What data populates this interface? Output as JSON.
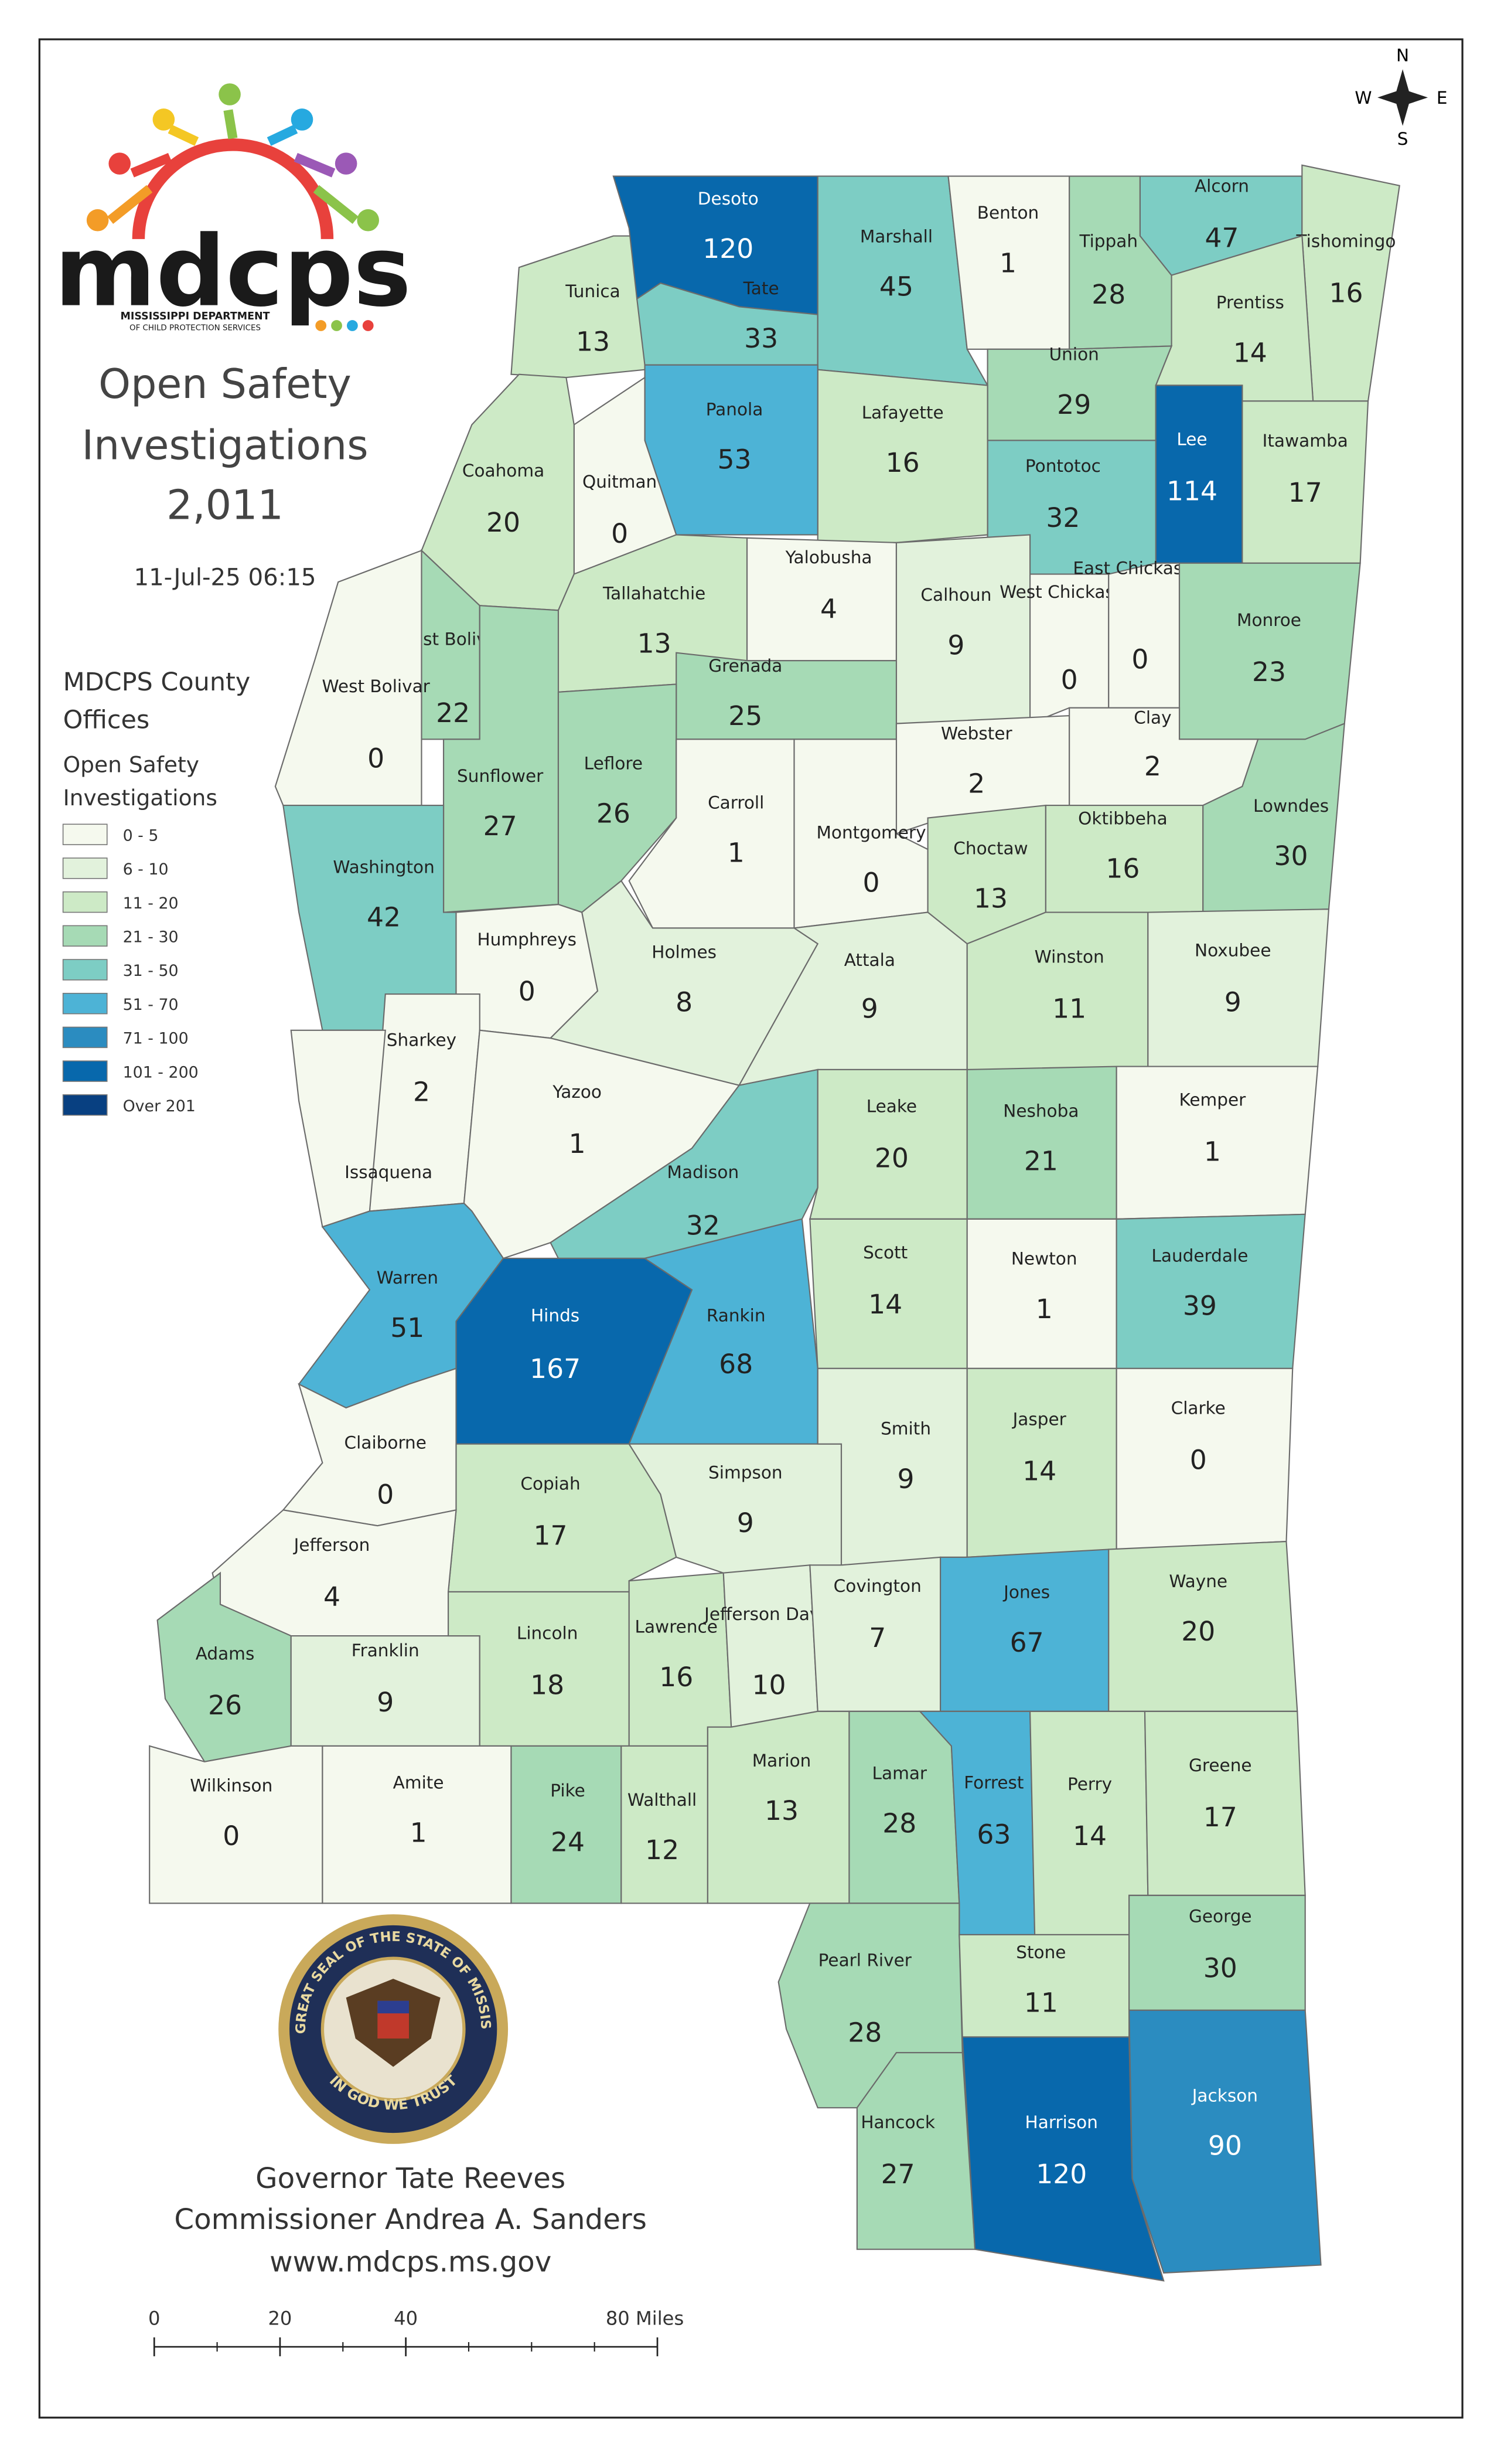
{
  "logo": {
    "wordmark": "mdcps",
    "line1": "MISSISSIPPI DEPARTMENT",
    "line2": "OF CHILD PROTECTION SERVICES"
  },
  "title_lines": [
    "Open Safety",
    "Investigations",
    "2,011"
  ],
  "timestamp": "11-Jul-25 06:15",
  "legend": {
    "title_lines": [
      "MDCPS County",
      "Offices"
    ],
    "subtitle_lines": [
      "Open Safety",
      "Investigations"
    ],
    "items": [
      {
        "label": "0 - 5",
        "color": "#f5f9ee"
      },
      {
        "label": "6 - 10",
        "color": "#e2f2dc"
      },
      {
        "label": "11 - 20",
        "color": "#cdeac6"
      },
      {
        "label": "21 - 30",
        "color": "#a6dab5"
      },
      {
        "label": "31 - 50",
        "color": "#7dcdc4"
      },
      {
        "label": "51 - 70",
        "color": "#4db3d6"
      },
      {
        "label": "71 - 100",
        "color": "#2b8cc0"
      },
      {
        "label": "101 - 200",
        "color": "#0868ac"
      },
      {
        "label": "Over 201",
        "color": "#084081"
      }
    ]
  },
  "compass": {
    "n": "N",
    "s": "S",
    "e": "E",
    "w": "W"
  },
  "seal": {
    "ring": "THE GREAT SEAL OF THE STATE OF MISSISSIPPI",
    "motto": "IN GOD WE TRUST"
  },
  "footer": [
    "Governor Tate Reeves",
    "Commissioner Andrea A. Sanders",
    "www.mdcps.ms.gov"
  ],
  "scale_bar": {
    "ticks": [
      0,
      20,
      40,
      {
        "value": 80,
        "label": "80 Miles"
      }
    ]
  },
  "counties": [
    {
      "name": "Tunica",
      "value": 13,
      "color": "#cdeac6"
    },
    {
      "name": "Desoto",
      "value": 120,
      "color": "#0868ac"
    },
    {
      "name": "Tate",
      "value": 33,
      "color": "#7dcdc4"
    },
    {
      "name": "Marshall",
      "value": 45,
      "color": "#7dcdc4"
    },
    {
      "name": "Benton",
      "value": 1,
      "color": "#f5f9ee"
    },
    {
      "name": "Tippah",
      "value": 28,
      "color": "#a6dab5"
    },
    {
      "name": "Alcorn",
      "value": 47,
      "color": "#7dcdc4"
    },
    {
      "name": "Tishomingo",
      "value": 16,
      "color": "#cdeac6"
    },
    {
      "name": "Prentiss",
      "value": 14,
      "color": "#cdeac6"
    },
    {
      "name": "Union",
      "value": 29,
      "color": "#a6dab5"
    },
    {
      "name": "Lee",
      "value": 114,
      "color": "#0868ac"
    },
    {
      "name": "Itawamba",
      "value": 17,
      "color": "#cdeac6"
    },
    {
      "name": "Pontotoc",
      "value": 32,
      "color": "#7dcdc4"
    },
    {
      "name": "Lafayette",
      "value": 16,
      "color": "#cdeac6"
    },
    {
      "name": "Panola",
      "value": 53,
      "color": "#4db3d6"
    },
    {
      "name": "Quitman",
      "value": 0,
      "color": "#f5f9ee"
    },
    {
      "name": "Coahoma",
      "value": 20,
      "color": "#cdeac6"
    },
    {
      "name": "Yalobusha",
      "value": 4,
      "color": "#f5f9ee"
    },
    {
      "name": "Calhoun",
      "value": 9,
      "color": "#e2f2dc"
    },
    {
      "name": "West Chickasaw",
      "value": 0,
      "color": "#f5f9ee"
    },
    {
      "name": "East Chickasaw",
      "value": 0,
      "color": "#f5f9ee"
    },
    {
      "name": "Monroe",
      "value": 23,
      "color": "#a6dab5"
    },
    {
      "name": "Tallahatchie",
      "value": 13,
      "color": "#cdeac6"
    },
    {
      "name": "East Bolivar",
      "value": 22,
      "color": "#a6dab5"
    },
    {
      "name": "West Bolivar",
      "value": 0,
      "color": "#f5f9ee"
    },
    {
      "name": "Grenada",
      "value": 25,
      "color": "#a6dab5"
    },
    {
      "name": "Sunflower",
      "value": 27,
      "color": "#a6dab5"
    },
    {
      "name": "Leflore",
      "value": 26,
      "color": "#a6dab5"
    },
    {
      "name": "Webster",
      "value": 2,
      "color": "#f5f9ee"
    },
    {
      "name": "Clay",
      "value": 2,
      "color": "#f5f9ee"
    },
    {
      "name": "Carroll",
      "value": 1,
      "color": "#f5f9ee"
    },
    {
      "name": "Montgomery",
      "value": 0,
      "color": "#f5f9ee"
    },
    {
      "name": "Washington",
      "value": 42,
      "color": "#7dcdc4"
    },
    {
      "name": "Choctaw",
      "value": 13,
      "color": "#cdeac6"
    },
    {
      "name": "Oktibbeha",
      "value": 16,
      "color": "#cdeac6"
    },
    {
      "name": "Lowndes",
      "value": 30,
      "color": "#a6dab5"
    },
    {
      "name": "Humphreys",
      "value": 0,
      "color": "#f5f9ee"
    },
    {
      "name": "Holmes",
      "value": 8,
      "color": "#e2f2dc"
    },
    {
      "name": "Attala",
      "value": 9,
      "color": "#e2f2dc"
    },
    {
      "name": "Winston",
      "value": 11,
      "color": "#cdeac6"
    },
    {
      "name": "Noxubee",
      "value": 9,
      "color": "#e2f2dc"
    },
    {
      "name": "Sharkey",
      "value": 2,
      "color": "#f5f9ee"
    },
    {
      "name": "Yazoo",
      "value": 1,
      "color": "#f5f9ee"
    },
    {
      "name": "Issaquena",
      "value": 0,
      "color": "#f5f9ee"
    },
    {
      "name": "Madison",
      "value": 32,
      "color": "#7dcdc4"
    },
    {
      "name": "Leake",
      "value": 20,
      "color": "#cdeac6"
    },
    {
      "name": "Neshoba",
      "value": 21,
      "color": "#a6dab5"
    },
    {
      "name": "Kemper",
      "value": 1,
      "color": "#f5f9ee"
    },
    {
      "name": "Warren",
      "value": 51,
      "color": "#4db3d6"
    },
    {
      "name": "Hinds",
      "value": 167,
      "color": "#0868ac"
    },
    {
      "name": "Rankin",
      "value": 68,
      "color": "#4db3d6"
    },
    {
      "name": "Scott",
      "value": 14,
      "color": "#cdeac6"
    },
    {
      "name": "Newton",
      "value": 1,
      "color": "#f5f9ee"
    },
    {
      "name": "Lauderdale",
      "value": 39,
      "color": "#7dcdc4"
    },
    {
      "name": "Claiborne",
      "value": 0,
      "color": "#f5f9ee"
    },
    {
      "name": "Copiah",
      "value": 17,
      "color": "#cdeac6"
    },
    {
      "name": "Simpson",
      "value": 9,
      "color": "#e2f2dc"
    },
    {
      "name": "Smith",
      "value": 9,
      "color": "#e2f2dc"
    },
    {
      "name": "Jasper",
      "value": 14,
      "color": "#cdeac6"
    },
    {
      "name": "Clarke",
      "value": 0,
      "color": "#f5f9ee"
    },
    {
      "name": "Jefferson",
      "value": 4,
      "color": "#f5f9ee"
    },
    {
      "name": "Adams",
      "value": 26,
      "color": "#a6dab5"
    },
    {
      "name": "Franklin",
      "value": 9,
      "color": "#e2f2dc"
    },
    {
      "name": "Lincoln",
      "value": 18,
      "color": "#cdeac6"
    },
    {
      "name": "Lawrence",
      "value": 16,
      "color": "#cdeac6"
    },
    {
      "name": "Jefferson Davis",
      "value": 10,
      "color": "#e2f2dc"
    },
    {
      "name": "Covington",
      "value": 7,
      "color": "#e2f2dc"
    },
    {
      "name": "Jones",
      "value": 67,
      "color": "#4db3d6"
    },
    {
      "name": "Wayne",
      "value": 20,
      "color": "#cdeac6"
    },
    {
      "name": "Wilkinson",
      "value": 0,
      "color": "#f5f9ee"
    },
    {
      "name": "Amite",
      "value": 1,
      "color": "#f5f9ee"
    },
    {
      "name": "Pike",
      "value": 24,
      "color": "#a6dab5"
    },
    {
      "name": "Walthall",
      "value": 12,
      "color": "#cdeac6"
    },
    {
      "name": "Marion",
      "value": 13,
      "color": "#cdeac6"
    },
    {
      "name": "Lamar",
      "value": 28,
      "color": "#a6dab5"
    },
    {
      "name": "Forrest",
      "value": 63,
      "color": "#4db3d6"
    },
    {
      "name": "Perry",
      "value": 14,
      "color": "#cdeac6"
    },
    {
      "name": "Greene",
      "value": 17,
      "color": "#cdeac6"
    },
    {
      "name": "Pearl River",
      "value": 28,
      "color": "#a6dab5"
    },
    {
      "name": "Stone",
      "value": 11,
      "color": "#cdeac6"
    },
    {
      "name": "George",
      "value": 30,
      "color": "#a6dab5"
    },
    {
      "name": "Hancock",
      "value": 27,
      "color": "#a6dab5"
    },
    {
      "name": "Harrison",
      "value": 120,
      "color": "#0868ac"
    },
    {
      "name": "Jackson",
      "value": 90,
      "color": "#2b8cc0"
    }
  ]
}
